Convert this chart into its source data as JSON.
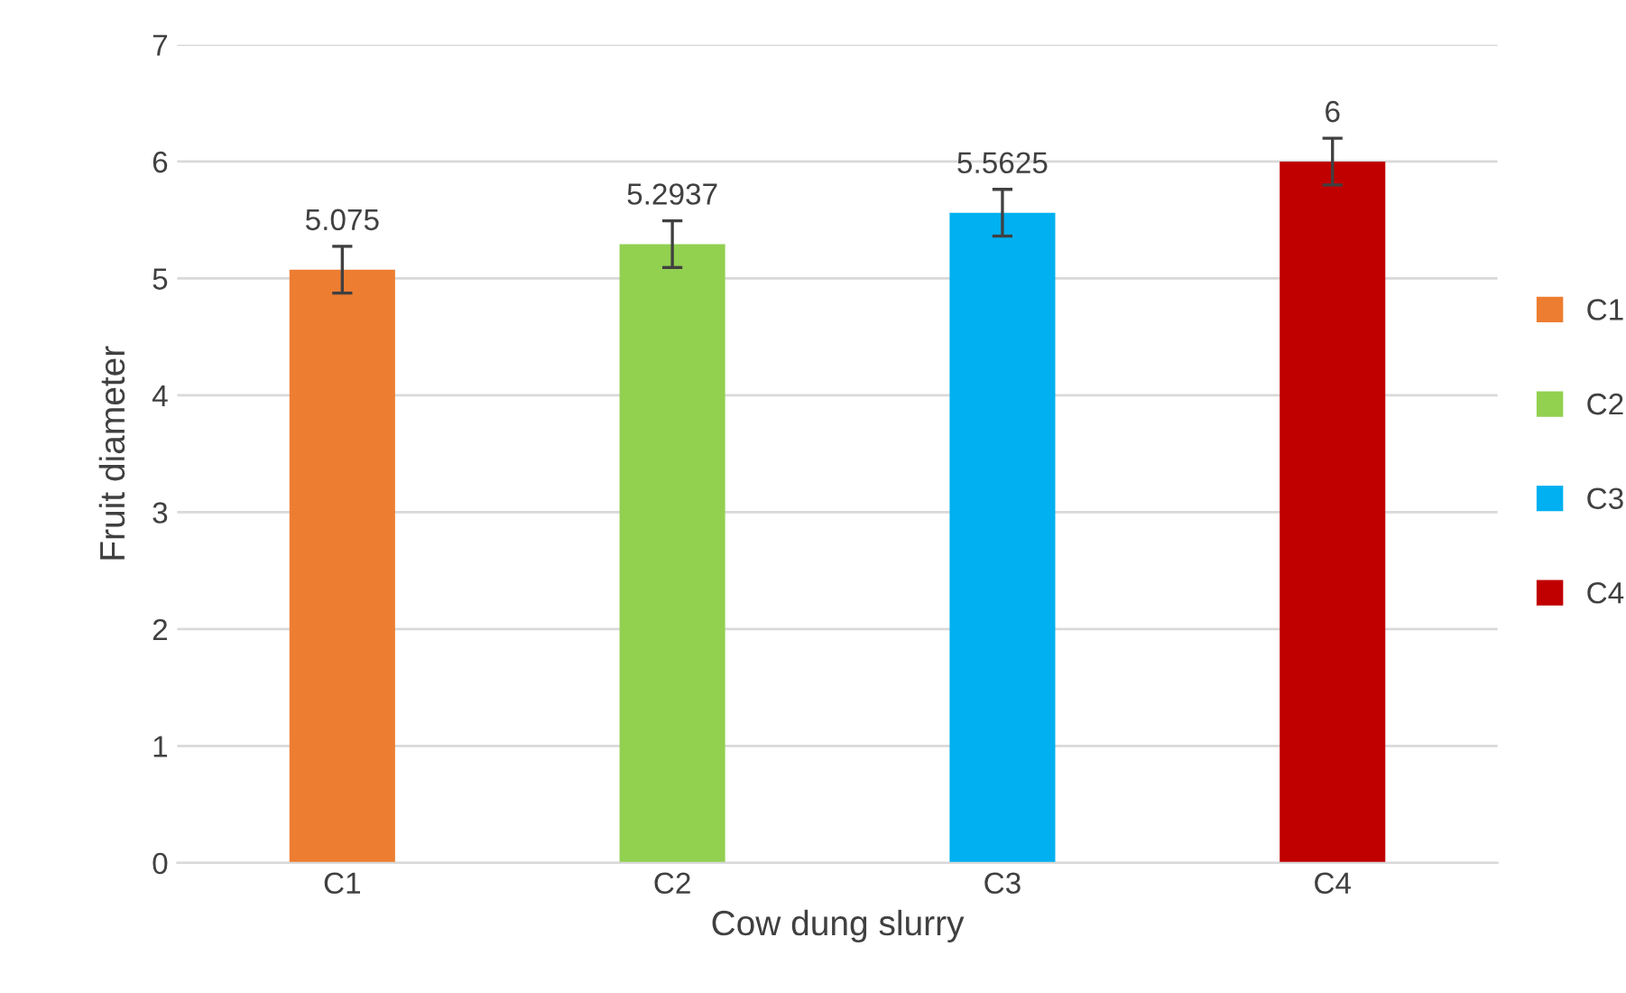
{
  "chart_data": {
    "type": "bar",
    "xlabel": "Cow dung slurry",
    "ylabel": "Fruit diameter",
    "categories": [
      "C1",
      "C2",
      "C3",
      "C4"
    ],
    "series": [
      {
        "name": "C1",
        "color": "#ed7d31",
        "values": [
          5.075,
          null,
          null,
          null
        ],
        "errors": [
          0.2,
          null,
          null,
          null
        ]
      },
      {
        "name": "C2",
        "color": "#92d050",
        "values": [
          null,
          5.2937,
          null,
          null
        ],
        "errors": [
          null,
          0.2,
          null,
          null
        ]
      },
      {
        "name": "C3",
        "color": "#00b0f0",
        "values": [
          null,
          null,
          5.5625,
          null
        ],
        "errors": [
          null,
          null,
          0.2,
          null
        ]
      },
      {
        "name": "C4",
        "color": "#c00000",
        "values": [
          null,
          null,
          null,
          6
        ],
        "errors": [
          null,
          null,
          null,
          0.2
        ]
      }
    ],
    "ylim": [
      0,
      7
    ],
    "yticks": [
      0,
      1,
      2,
      3,
      4,
      5,
      6,
      7
    ],
    "grid": "y",
    "legend": "right",
    "data_labels": true
  }
}
